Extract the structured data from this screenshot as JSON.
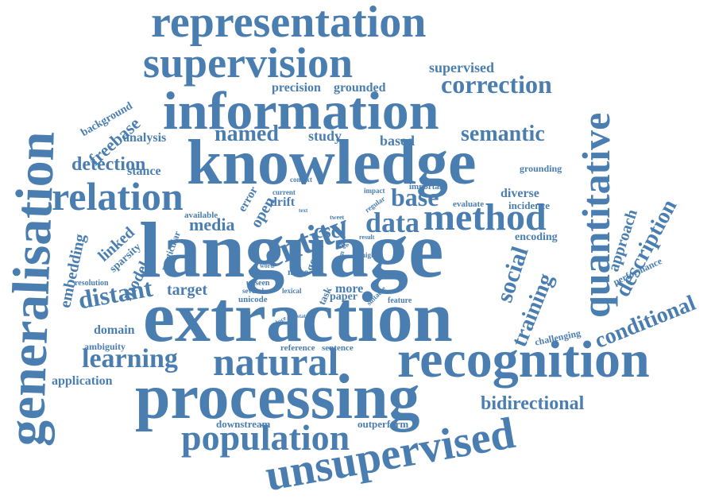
{
  "word_cloud": {
    "color": "#4a7eb0",
    "words": [
      "representation",
      "supervision",
      "information",
      "knowledge",
      "language",
      "extraction",
      "processing",
      "recognition",
      "natural",
      "unsupervised",
      "population",
      "generalisation",
      "quantitative",
      "entity",
      "relation",
      "method",
      "data",
      "base",
      "correction",
      "semantic",
      "named",
      "supervised",
      "precision",
      "grounded",
      "freebase",
      "background",
      "analysis",
      "detection",
      "stance",
      "study",
      "based",
      "grounding",
      "diverse",
      "incidence",
      "evaluate",
      "important",
      "impact",
      "regular",
      "context",
      "current",
      "drift",
      "error",
      "open",
      "media",
      "available",
      "cscl",
      "tweet",
      "page",
      "result",
      "system",
      "genre",
      "particular",
      "linked",
      "sparsity",
      "model",
      "embedding",
      "resolution",
      "distant",
      "target",
      "unseen",
      "unicode",
      "several",
      "lexical",
      "noise",
      "word",
      "task",
      "more",
      "paper",
      "suitable",
      "feature",
      "social",
      "training",
      "encoding",
      "approach",
      "description",
      "performance",
      "conditional",
      "challenging",
      "domain",
      "ambiguity",
      "learning",
      "reference",
      "sentence",
      "reduce",
      "state",
      "text",
      "higher",
      "application",
      "downstream",
      "outperform",
      "bidirectional"
    ]
  }
}
